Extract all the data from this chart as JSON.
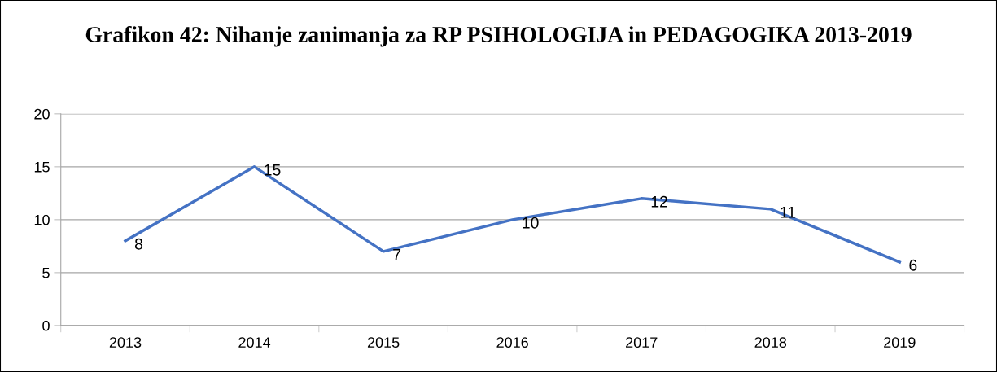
{
  "chart_data": {
    "type": "line",
    "title": "Grafikon 42: Nihanje zanimanja za RP PSIHOLOGIJA in PEDAGOGIKA 2013-2019",
    "categories": [
      "2013",
      "2014",
      "2015",
      "2016",
      "2017",
      "2018",
      "2019"
    ],
    "series": [
      {
        "color": "#4472c4",
        "values": [
          8,
          15,
          7,
          10,
          12,
          11,
          6
        ]
      }
    ],
    "ylim": [
      0,
      20
    ],
    "yticks": [
      0,
      5,
      10,
      15,
      20
    ],
    "grid": "y",
    "data_labels": true,
    "marker": "none",
    "line_style": "solid",
    "legend": false
  }
}
